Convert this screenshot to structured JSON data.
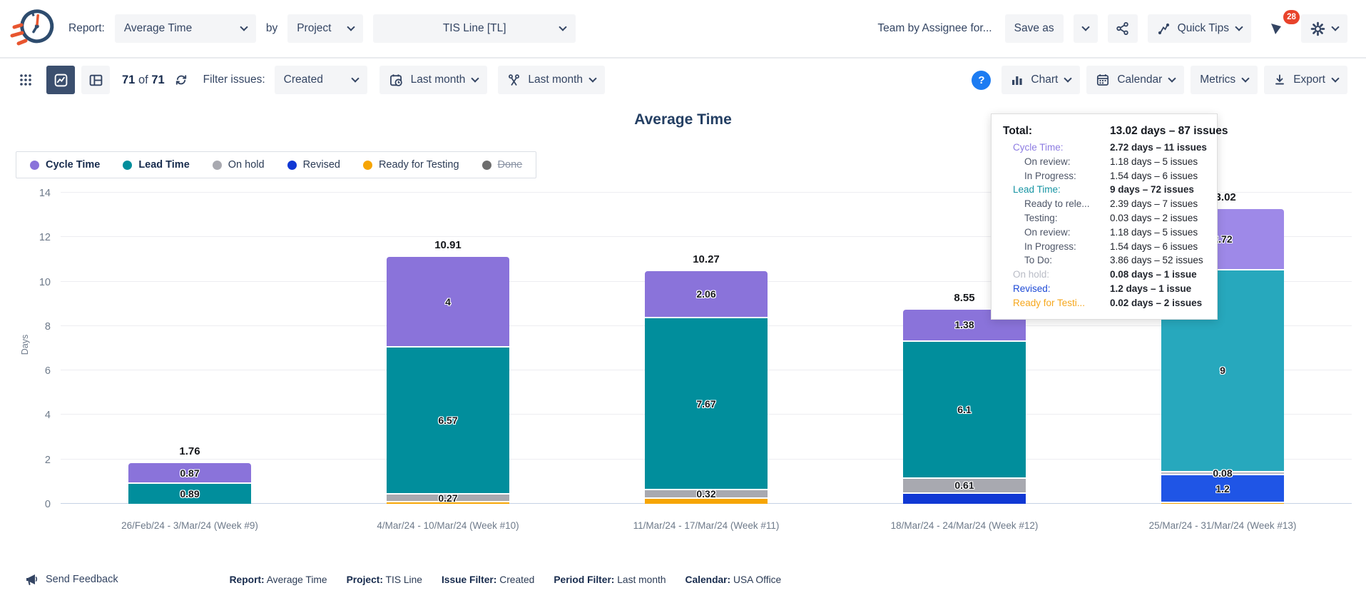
{
  "header": {
    "report_label": "Report:",
    "report_select": "Average Time",
    "by_label": "by",
    "group_select": "Project",
    "project_select": "TIS Line [TL]",
    "saved_report_name": "Team by Assignee for...",
    "save_as_label": "Save as",
    "quick_tips_label": "Quick Tips",
    "notification_count": "28"
  },
  "toolbar": {
    "count_current": "71",
    "count_sep": "of",
    "count_total": "71",
    "filter_issues_label": "Filter issues:",
    "issue_filter_select": "Created",
    "date_range_select": "Last month",
    "period_filter_select": "Last month",
    "help_label": "?",
    "chart_button": "Chart",
    "calendar_button": "Calendar",
    "metrics_button": "Metrics",
    "export_button": "Export"
  },
  "chart_data": {
    "type": "bar",
    "stacked": true,
    "title": "Average Time",
    "ylabel": "Days",
    "ylim": [
      0,
      14
    ],
    "yticks": [
      0,
      2,
      4,
      6,
      8,
      10,
      12,
      14
    ],
    "grid": true,
    "legend_position": "top-left",
    "active_bar_index": 4,
    "categories": [
      "26/Feb/24 - 3/Mar/24 (Week #9)",
      "4/Mar/24 - 10/Mar/24 (Week #10)",
      "11/Mar/24 - 17/Mar/24 (Week #11)",
      "18/Mar/24 - 24/Mar/24 (Week #12)",
      "25/Mar/24 - 31/Mar/24 (Week #13)"
    ],
    "totals": [
      "1.76",
      "10.91",
      "10.27",
      "8.55",
      "13.02"
    ],
    "series": [
      {
        "name": "Cycle Time",
        "color": "#8a73da",
        "color_active": "#9e89e8",
        "legend_bold": true,
        "values": [
          0.87,
          4,
          2.06,
          1.38,
          2.72
        ],
        "labels": [
          "0.87",
          "4",
          "2.06",
          "1.38",
          "2.72"
        ]
      },
      {
        "name": "Lead Time",
        "color": "#018e9c",
        "color_active": "#27a8bd",
        "legend_bold": true,
        "values": [
          0.89,
          6.57,
          7.67,
          6.1,
          9
        ],
        "labels": [
          "0.89",
          "6.57",
          "7.67",
          "6.1",
          "9"
        ]
      },
      {
        "name": "On hold",
        "color": "#a8a9b0",
        "color_active": "#bbbcc2",
        "values": [
          0,
          0.27,
          0.32,
          0.61,
          0.08
        ],
        "labels": [
          null,
          "0.27",
          "0.32",
          "0.61",
          "0.08"
        ]
      },
      {
        "name": "Revised",
        "color": "#1038d4",
        "color_active": "#1f55e6",
        "values": [
          0,
          0,
          0,
          0.46,
          1.2
        ],
        "labels": [
          null,
          null,
          null,
          null,
          "1.2"
        ]
      },
      {
        "name": "Ready for Testing",
        "color": "#f6a504",
        "color_active": "#f6a504",
        "values": [
          0,
          0.07,
          0.22,
          0,
          0.02
        ],
        "labels": [
          null,
          null,
          null,
          null,
          null
        ]
      },
      {
        "name": "Done",
        "color": "#6d6d6d",
        "strikethrough": true,
        "values": [
          0,
          0,
          0,
          0,
          0
        ],
        "labels": [
          null,
          null,
          null,
          null,
          null
        ]
      }
    ]
  },
  "tooltip": {
    "rows": [
      {
        "label": "Total:",
        "value": "13.02 days – 87 issues",
        "level": 0
      },
      {
        "label": "Cycle Time:",
        "value": "2.72 days – 11 issues",
        "level": 1,
        "color": "#8d7ce2"
      },
      {
        "label": "On review:",
        "value": "1.18 days – 5 issues",
        "level": 2
      },
      {
        "label": "In Progress:",
        "value": "1.54 days – 6 issues",
        "level": 2
      },
      {
        "label": "Lead Time:",
        "value": "9 days – 72 issues",
        "level": 1,
        "color": "#1694a3"
      },
      {
        "label": "Ready to rele...",
        "value": "2.39 days – 7 issues",
        "level": 2
      },
      {
        "label": "Testing:",
        "value": "0.03 days – 2 issues",
        "level": 2
      },
      {
        "label": "On review:",
        "value": "1.18 days – 5 issues",
        "level": 2
      },
      {
        "label": "In Progress:",
        "value": "1.54 days – 6 issues",
        "level": 2
      },
      {
        "label": "To Do:",
        "value": "3.86 days – 52 issues",
        "level": 2
      },
      {
        "label": "On hold:",
        "value": "0.08 days – 1 issue",
        "level": 1,
        "color": "#b9bcc6"
      },
      {
        "label": "Revised:",
        "value": "1.2 days – 1 issue",
        "level": 1,
        "color": "#1e4ad6"
      },
      {
        "label": "Ready for Testi...",
        "value": "0.02 days – 2 issues",
        "level": 1,
        "color": "#f6a71c"
      }
    ]
  },
  "footer": {
    "send_feedback": "Send Feedback",
    "items": [
      {
        "label": "Report:",
        "value": "Average Time"
      },
      {
        "label": "Project:",
        "value": "TIS Line"
      },
      {
        "label": "Issue Filter:",
        "value": "Created"
      },
      {
        "label": "Period Filter:",
        "value": "Last month"
      },
      {
        "label": "Calendar:",
        "value": "USA Office"
      }
    ]
  }
}
